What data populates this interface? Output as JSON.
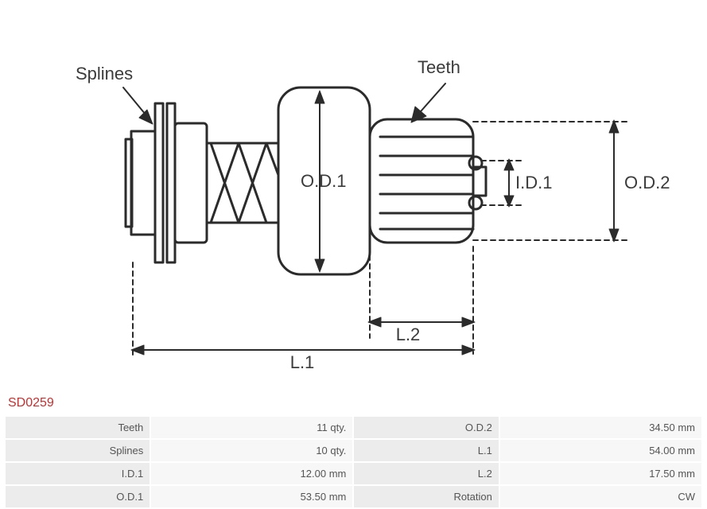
{
  "part_number": "SD0259",
  "title_color": "#c62f2f",
  "table": {
    "label_bg": "#ececec",
    "value_bg": "#f7f7f7",
    "border_color": "#ffffff",
    "text_color": "#555555",
    "rows": [
      {
        "l1": "Teeth",
        "v1": "11 qty.",
        "l2": "O.D.2",
        "v2": "34.50 mm"
      },
      {
        "l1": "Splines",
        "v1": "10 qty.",
        "l2": "L.1",
        "v2": "54.00 mm"
      },
      {
        "l1": "I.D.1",
        "v1": "12.00 mm",
        "l2": "L.2",
        "v2": "17.50 mm"
      },
      {
        "l1": "O.D.1",
        "v1": "53.50 mm",
        "l2": "Rotation",
        "v2": "CW"
      }
    ]
  },
  "diagram": {
    "labels": {
      "splines": "Splines",
      "teeth": "Teeth",
      "od1": "O.D.1",
      "od2": "O.D.2",
      "id1": "I.D.1",
      "l1": "L.1",
      "l2": "L.2"
    },
    "stroke": "#2b2b2b",
    "stroke_thick": 3,
    "stroke_thin": 2,
    "dash": "6,5",
    "background": "#ffffff"
  }
}
